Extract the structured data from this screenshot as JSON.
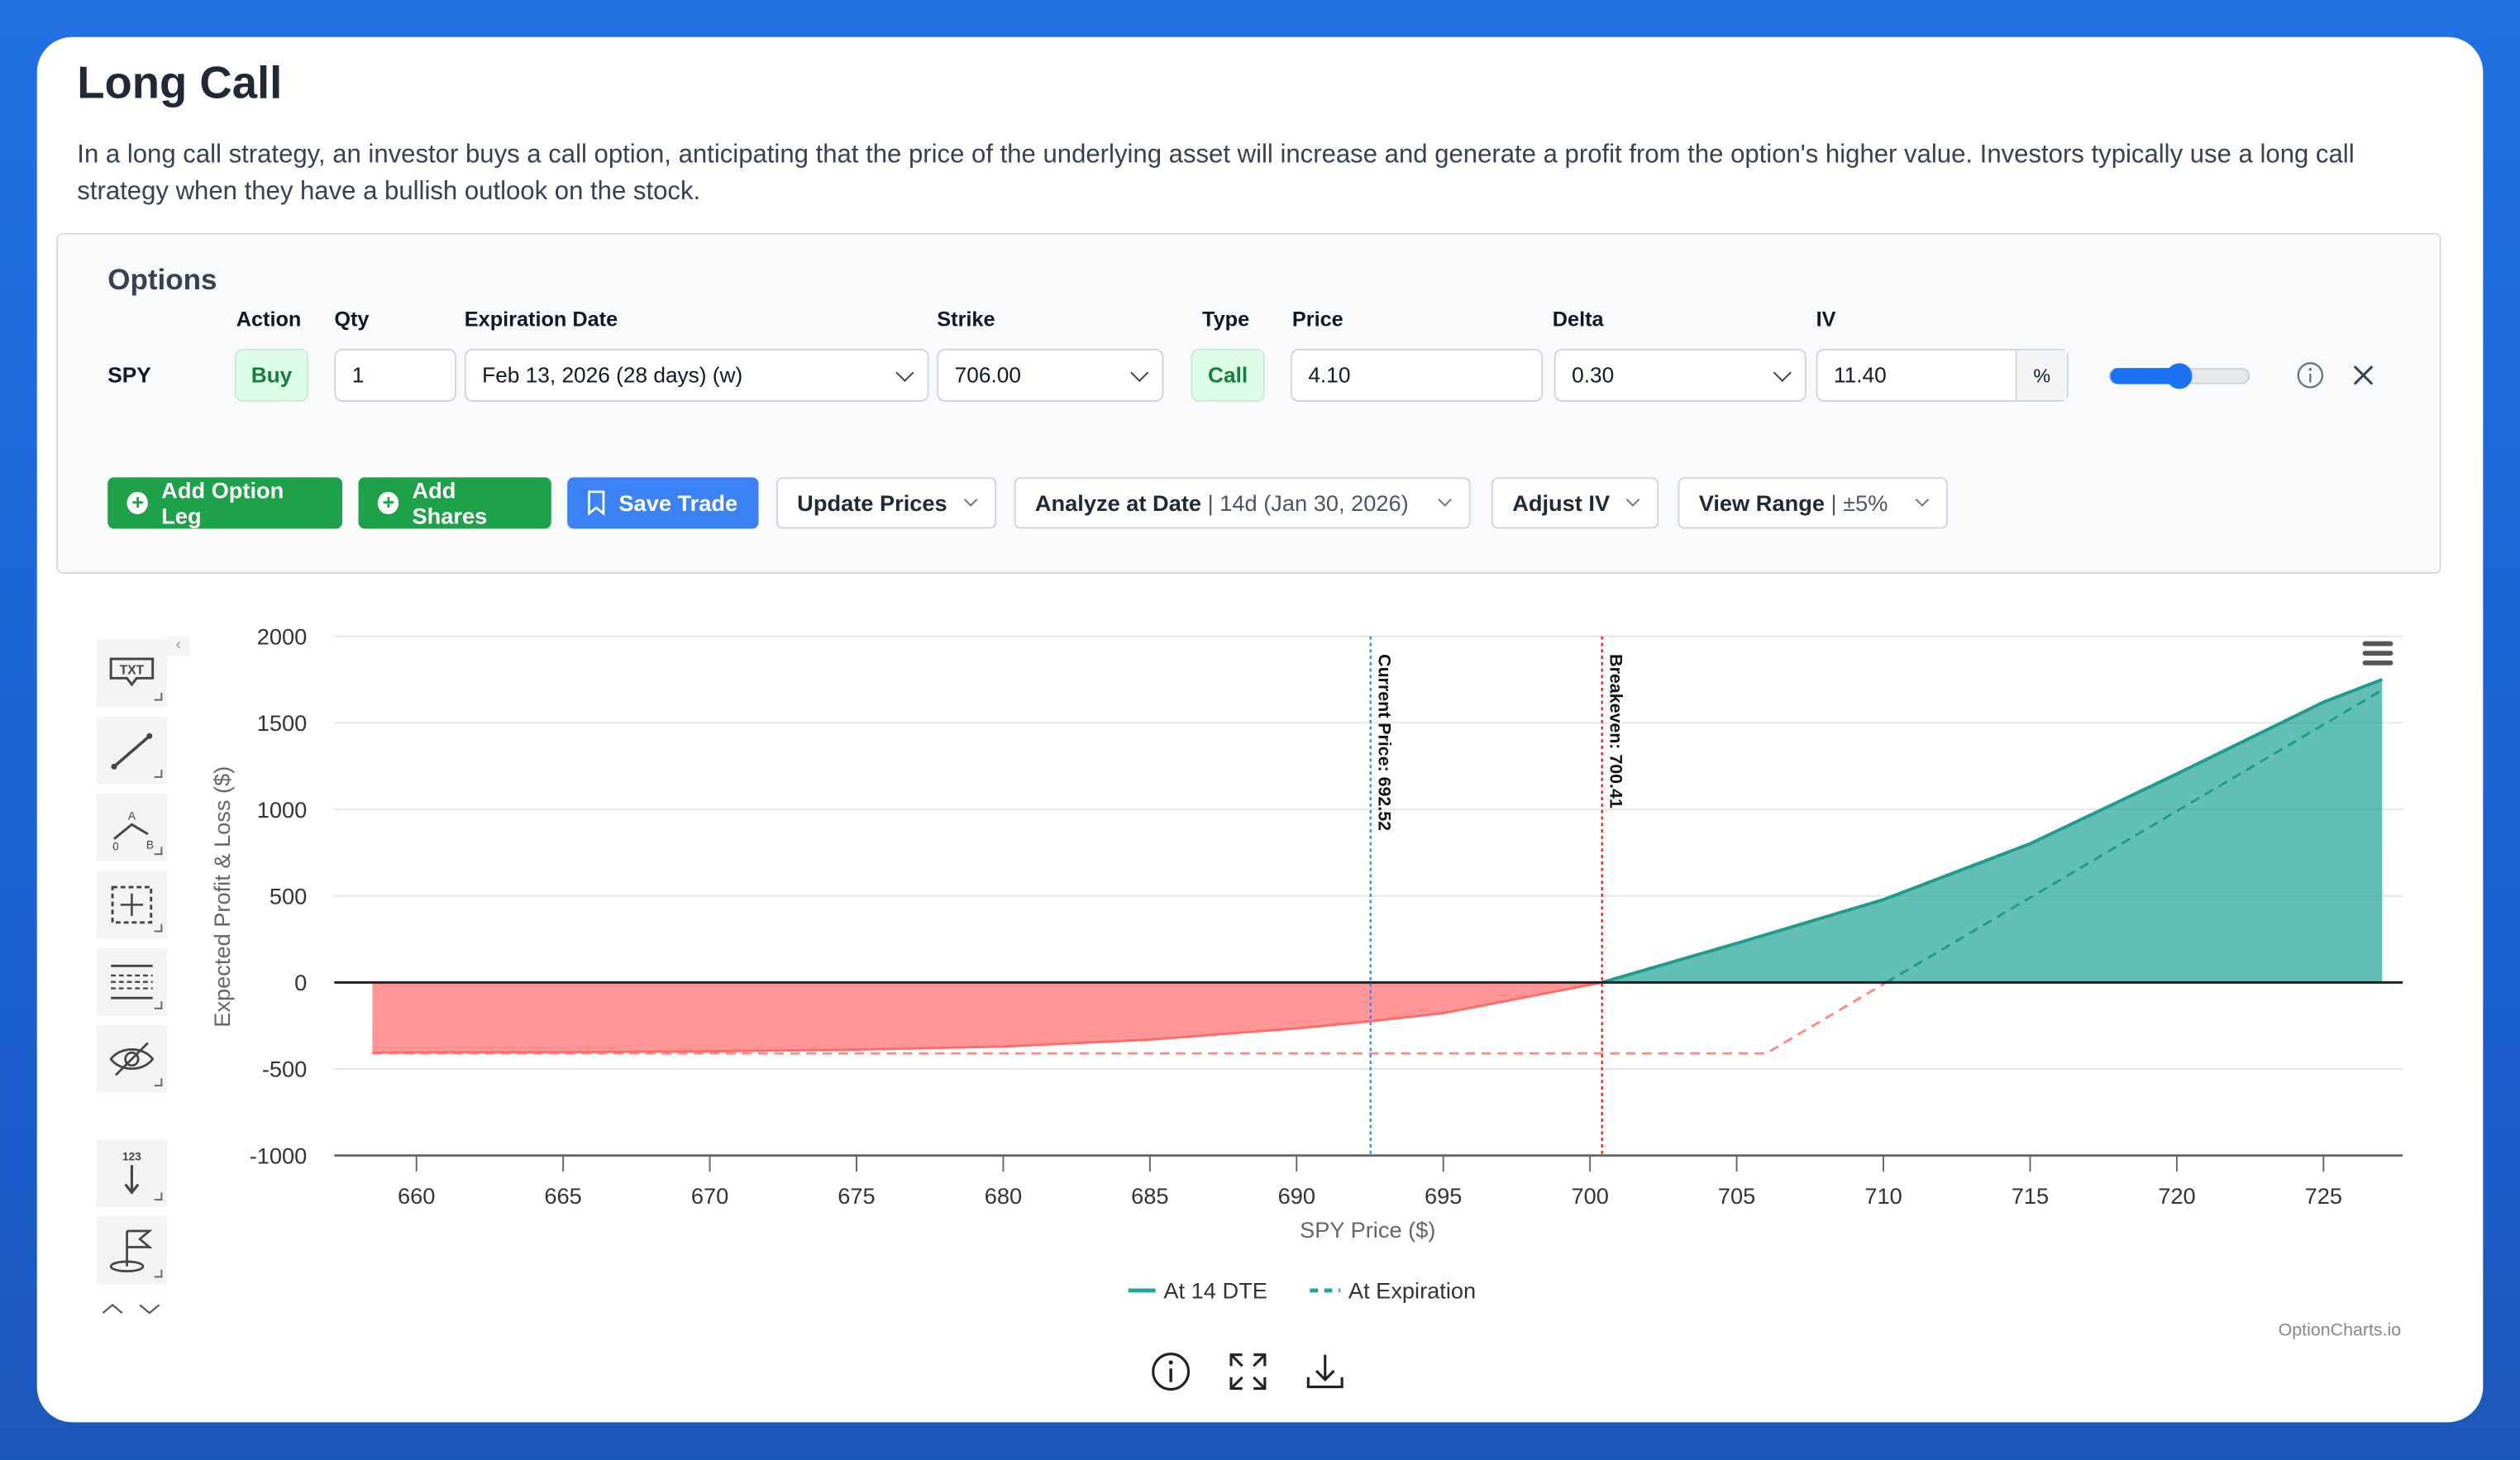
{
  "title": "Long Call",
  "description": "In a long call strategy, an investor buys a call option, anticipating that the price of the underlying asset will increase and generate a profit from the option's higher value. Investors typically use a long call strategy when they have a bullish outlook on the stock.",
  "options": {
    "heading": "Options",
    "headers": {
      "action": "Action",
      "qty": "Qty",
      "expiration": "Expiration Date",
      "strike": "Strike",
      "type": "Type",
      "price": "Price",
      "delta": "Delta",
      "iv": "IV"
    },
    "leg": {
      "symbol": "SPY",
      "action": "Buy",
      "qty": "1",
      "expiration": "Feb 13, 2026 (28 days) (w)",
      "strike": "706.00",
      "type": "Call",
      "price": "4.10",
      "delta": "0.30",
      "iv": "11.40",
      "iv_unit": "%",
      "iv_slider_fraction": 0.5
    }
  },
  "toolbar": {
    "add_option_leg": "Add Option Leg",
    "add_shares": "Add Shares",
    "save_trade": "Save Trade",
    "update_prices": "Update Prices",
    "analyze_label": "Analyze at Date",
    "analyze_value": "14d (Jan 30, 2026)",
    "adjust_iv": "Adjust IV",
    "view_range_label": "View Range",
    "view_range_value": "±5%"
  },
  "colors": {
    "profit": "#26a69a",
    "loss": "#ff7b7b",
    "current": "#3b82f6",
    "breakeven": "#ef2020",
    "accent": "#1da24a"
  },
  "chart_data": {
    "type": "area",
    "xlabel": "SPY Price ($)",
    "ylabel": "Expected Profit & Loss ($)",
    "xlim": [
      657.2,
      727.7
    ],
    "ylim": [
      -1000,
      2000
    ],
    "xticks": [
      660,
      665,
      670,
      675,
      680,
      685,
      690,
      695,
      700,
      705,
      710,
      715,
      720,
      725
    ],
    "yticks": [
      2000,
      1500,
      1000,
      500,
      0,
      -500,
      -1000
    ],
    "grid": true,
    "series": [
      {
        "name": "At 14 DTE",
        "style": "solid",
        "x": [
          658.5,
          665,
          670,
          675,
          680,
          685,
          690,
          692.52,
          695,
          700.41,
          705,
          710,
          715,
          720,
          725,
          727
        ],
        "y": [
          -405,
          -403,
          -398,
          -388,
          -370,
          -330,
          -265,
          -224,
          -177,
          0,
          226,
          479,
          802,
          1205,
          1620,
          1751
        ]
      },
      {
        "name": "At Expiration",
        "style": "dashed",
        "x": [
          658.5,
          706,
          727
        ],
        "y": [
          -410,
          -410,
          1690
        ]
      }
    ],
    "annotations": [
      {
        "label": "Current Price: 692.52",
        "x": 692.52
      },
      {
        "label": "Breakeven: 700.41",
        "x": 700.41
      }
    ],
    "legend": "bottom-center",
    "credit": "OptionCharts.io"
  }
}
